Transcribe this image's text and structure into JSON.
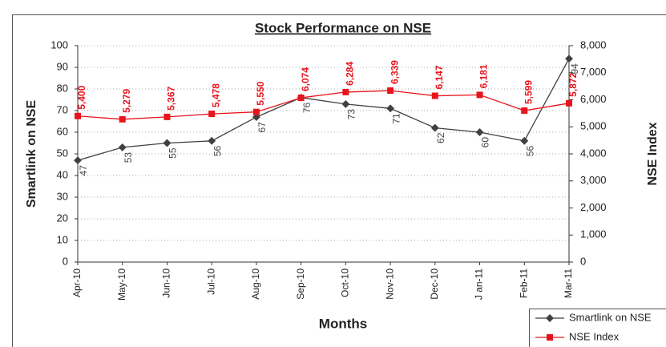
{
  "chart_data": {
    "type": "line",
    "title": "Stock Performance on NSE",
    "x_label": "Months",
    "y_label": "Smartlink on NSE",
    "y2_label": "NSE Index",
    "categories": [
      "Apr-10",
      "May-10",
      "Jun-10",
      "Jul-10",
      "Aug-10",
      "Sep-10",
      "Oct-10",
      "Nov-10",
      "Dec-10",
      "J an-11",
      "Feb-11",
      "Mar-11"
    ],
    "series": [
      {
        "name": "Smartlink on NSE",
        "color": "#404040",
        "values": [
          47,
          53,
          55,
          56,
          67,
          76,
          73,
          71,
          62,
          60,
          56,
          94
        ]
      },
      {
        "name": "NSE Index",
        "color": "#e8141c",
        "axis": "y2",
        "values": [
          5400,
          5279,
          5367,
          5478,
          5550,
          6074,
          6284,
          6339,
          6147,
          6181,
          5599,
          5872
        ],
        "value_labels": [
          "5,400",
          "5,279",
          "5,367",
          "5,478",
          "5,550",
          "6,074",
          "6,284",
          "6,339",
          "6,147",
          "6,181",
          "5,599",
          "5,872"
        ]
      }
    ],
    "ylim": [
      0,
      100
    ],
    "yticks": [
      0,
      10,
      20,
      30,
      40,
      50,
      60,
      70,
      80,
      90,
      100
    ],
    "y2lim": [
      0,
      8000
    ],
    "y2ticks": [
      0,
      {
        "value": 1000,
        "label": "1,000"
      },
      {
        "value": 2000,
        "label": "2,000"
      },
      {
        "value": 3000,
        "label": "3,000"
      },
      {
        "value": 4000,
        "label": "4,000"
      },
      {
        "value": 5000,
        "label": "5,000"
      },
      {
        "value": 6000,
        "label": "6,000"
      },
      {
        "value": 7000,
        "label": "7,000"
      },
      {
        "value": 8000,
        "label": "8,000"
      }
    ],
    "grid": true,
    "legend": "bottom-right"
  }
}
